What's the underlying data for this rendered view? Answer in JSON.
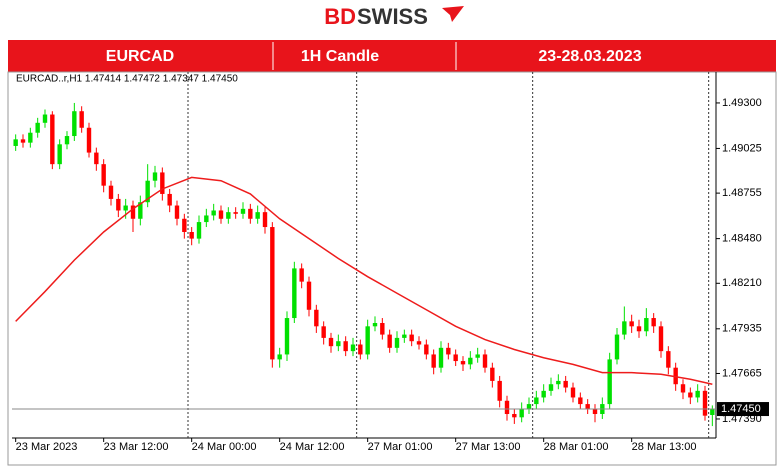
{
  "logo": {
    "part1": "BD",
    "part2": "SWISS"
  },
  "header": {
    "symbol": "EURCAD",
    "timeframe": "1H Candle",
    "period": "23-28.03.2023"
  },
  "chart_data": {
    "type": "candlestick",
    "info": "EURCAD..r,H1  1.47414 1.47472 1.47347 1.47450",
    "xlim": [
      -0.5,
      95.5
    ],
    "xticks": [
      {
        "value": 0,
        "label": "23 Mar 2023"
      },
      {
        "value": 12,
        "label": "23 Mar 12:00"
      },
      {
        "value": 24,
        "label": "24 Mar 00:00"
      },
      {
        "value": 36,
        "label": "24 Mar 12:00"
      },
      {
        "value": 48,
        "label": "27 Mar 01:00"
      },
      {
        "value": 60,
        "label": "27 Mar 13:00"
      },
      {
        "value": 72,
        "label": "28 Mar 01:00"
      },
      {
        "value": 84,
        "label": "28 Mar 13:00"
      }
    ],
    "ylim": [
      1.47275,
      1.49487
    ],
    "yticks": [
      {
        "value": 1.493,
        "label": "1.49300"
      },
      {
        "value": 1.49025,
        "label": "1.49025"
      },
      {
        "value": 1.48755,
        "label": "1.48755"
      },
      {
        "value": 1.4848,
        "label": "1.48480"
      },
      {
        "value": 1.4821,
        "label": "1.48210"
      },
      {
        "value": 1.47935,
        "label": "1.47935"
      },
      {
        "value": 1.47665,
        "label": "1.47665"
      },
      {
        "value": 1.4739,
        "label": "1.47390"
      }
    ],
    "last_price": {
      "value": 1.4745,
      "label": "1.47450"
    },
    "up_color": "#00e000",
    "down_color": "#ff0000",
    "series": [
      {
        "values": [
          [
            1.4904,
            1.4911,
            1.4901,
            1.4908
          ],
          [
            1.4908,
            1.4911,
            1.4903,
            1.4906
          ],
          [
            1.4906,
            1.4915,
            1.4903,
            1.4912
          ],
          [
            1.4912,
            1.4921,
            1.4909,
            1.4918
          ],
          [
            1.4918,
            1.4926,
            1.4915,
            1.4923
          ],
          [
            1.4923,
            1.4925,
            1.489,
            1.4893
          ],
          [
            1.4893,
            1.4908,
            1.489,
            1.4905
          ],
          [
            1.4905,
            1.4913,
            1.4902,
            1.491
          ],
          [
            1.491,
            1.493,
            1.4907,
            1.4925
          ],
          [
            1.4925,
            1.4928,
            1.4912,
            1.4915
          ],
          [
            1.4915,
            1.4918,
            1.4897,
            1.49
          ],
          [
            1.49,
            1.4903,
            1.4889,
            1.4893
          ],
          [
            1.4893,
            1.4896,
            1.4876,
            1.488
          ],
          [
            1.488,
            1.4883,
            1.4868,
            1.4872
          ],
          [
            1.4872,
            1.4875,
            1.4861,
            1.4865
          ],
          [
            1.4865,
            1.4872,
            1.486,
            1.4868
          ],
          [
            1.4868,
            1.4871,
            1.4852,
            1.486
          ],
          [
            1.486,
            1.4874,
            1.4856,
            1.487
          ],
          [
            1.487,
            1.4893,
            1.4867,
            1.4883
          ],
          [
            1.4883,
            1.4892,
            1.4879,
            1.4888
          ],
          [
            1.4888,
            1.4891,
            1.4871,
            1.4875
          ],
          [
            1.4875,
            1.4878,
            1.4864,
            1.4868
          ],
          [
            1.4868,
            1.4871,
            1.4856,
            1.486
          ],
          [
            1.486,
            1.4863,
            1.4848,
            1.4852
          ],
          [
            1.4852,
            1.4855,
            1.4844,
            1.4848
          ],
          [
            1.4848,
            1.4862,
            1.4845,
            1.4858
          ],
          [
            1.4858,
            1.4866,
            1.4855,
            1.4862
          ],
          [
            1.4862,
            1.4869,
            1.4859,
            1.4865
          ],
          [
            1.4865,
            1.4868,
            1.4857,
            1.486
          ],
          [
            1.486,
            1.4867,
            1.4857,
            1.4864
          ],
          [
            1.4864,
            1.4867,
            1.486,
            1.4863
          ],
          [
            1.4863,
            1.487,
            1.486,
            1.4866
          ],
          [
            1.4866,
            1.4869,
            1.4857,
            1.486
          ],
          [
            1.486,
            1.4868,
            1.4857,
            1.4864
          ],
          [
            1.4864,
            1.4867,
            1.4851,
            1.4855
          ],
          [
            1.4855,
            1.4858,
            1.477,
            1.4775
          ],
          [
            1.4775,
            1.4782,
            1.477,
            1.4778
          ],
          [
            1.4778,
            1.4804,
            1.4774,
            1.48
          ],
          [
            1.48,
            1.4834,
            1.4797,
            1.483
          ],
          [
            1.483,
            1.4833,
            1.4818,
            1.4822
          ],
          [
            1.4822,
            1.4825,
            1.4801,
            1.4805
          ],
          [
            1.4805,
            1.4808,
            1.4791,
            1.4795
          ],
          [
            1.4795,
            1.4798,
            1.4784,
            1.4788
          ],
          [
            1.4788,
            1.4791,
            1.4779,
            1.4783
          ],
          [
            1.4783,
            1.479,
            1.478,
            1.4786
          ],
          [
            1.4786,
            1.4789,
            1.4777,
            1.478
          ],
          [
            1.478,
            1.4788,
            1.4777,
            1.4784
          ],
          [
            1.4784,
            1.4787,
            1.4775,
            1.4778
          ],
          [
            1.4778,
            1.4799,
            1.4775,
            1.4795
          ],
          [
            1.4795,
            1.4801,
            1.4792,
            1.4797
          ],
          [
            1.4797,
            1.48,
            1.4787,
            1.479
          ],
          [
            1.479,
            1.4793,
            1.4779,
            1.4782
          ],
          [
            1.4782,
            1.4792,
            1.4779,
            1.4788
          ],
          [
            1.4788,
            1.4793,
            1.4785,
            1.479
          ],
          [
            1.479,
            1.4793,
            1.4783,
            1.4786
          ],
          [
            1.4786,
            1.4789,
            1.4781,
            1.4784
          ],
          [
            1.4784,
            1.4787,
            1.4775,
            1.4778
          ],
          [
            1.4778,
            1.4781,
            1.4766,
            1.477
          ],
          [
            1.477,
            1.4786,
            1.4767,
            1.4782
          ],
          [
            1.4782,
            1.4785,
            1.4775,
            1.4778
          ],
          [
            1.4778,
            1.4781,
            1.4771,
            1.4774
          ],
          [
            1.4774,
            1.4777,
            1.4768,
            1.4772
          ],
          [
            1.4772,
            1.478,
            1.4769,
            1.4776
          ],
          [
            1.4776,
            1.4782,
            1.4773,
            1.4778
          ],
          [
            1.4778,
            1.4781,
            1.4767,
            1.477
          ],
          [
            1.477,
            1.4773,
            1.4758,
            1.4762
          ],
          [
            1.4762,
            1.4765,
            1.4746,
            1.475
          ],
          [
            1.475,
            1.4753,
            1.4738,
            1.4742
          ],
          [
            1.4742,
            1.4745,
            1.4736,
            1.474
          ],
          [
            1.474,
            1.4749,
            1.4737,
            1.4745
          ],
          [
            1.4745,
            1.4752,
            1.4742,
            1.4748
          ],
          [
            1.4748,
            1.4756,
            1.4745,
            1.4752
          ],
          [
            1.4752,
            1.476,
            1.4749,
            1.4756
          ],
          [
            1.4756,
            1.4764,
            1.4753,
            1.476
          ],
          [
            1.476,
            1.4766,
            1.4757,
            1.4762
          ],
          [
            1.4762,
            1.4765,
            1.4755,
            1.4758
          ],
          [
            1.4758,
            1.4761,
            1.4749,
            1.4752
          ],
          [
            1.4752,
            1.4755,
            1.4745,
            1.4748
          ],
          [
            1.4748,
            1.4751,
            1.4742,
            1.4745
          ],
          [
            1.4745,
            1.4748,
            1.4737,
            1.4742
          ],
          [
            1.4742,
            1.4752,
            1.4739,
            1.4748
          ],
          [
            1.4748,
            1.4779,
            1.4745,
            1.4775
          ],
          [
            1.4775,
            1.4794,
            1.4772,
            1.479
          ],
          [
            1.479,
            1.4807,
            1.4787,
            1.4798
          ],
          [
            1.4798,
            1.4802,
            1.4791,
            1.4795
          ],
          [
            1.4795,
            1.4799,
            1.4788,
            1.4792
          ],
          [
            1.4792,
            1.4806,
            1.4789,
            1.48
          ],
          [
            1.48,
            1.4803,
            1.4791,
            1.4795
          ],
          [
            1.4795,
            1.4798,
            1.4776,
            1.478
          ],
          [
            1.478,
            1.4783,
            1.4766,
            1.477
          ],
          [
            1.477,
            1.4773,
            1.4756,
            1.476
          ],
          [
            1.476,
            1.4763,
            1.4751,
            1.4755
          ],
          [
            1.4755,
            1.4758,
            1.4748,
            1.4752
          ],
          [
            1.4752,
            1.476,
            1.4749,
            1.4756
          ],
          [
            1.4756,
            1.4759,
            1.4738,
            1.4741
          ],
          [
            1.47414,
            1.47472,
            1.47347,
            1.4745
          ]
        ]
      },
      {
        "type": "line",
        "color": "#ee1c1c",
        "x": [
          0,
          4,
          8,
          12,
          16,
          20,
          24,
          28,
          32,
          36,
          40,
          44,
          48,
          52,
          56,
          60,
          64,
          68,
          72,
          76,
          80,
          84,
          88,
          92,
          95
        ],
        "values": [
          1.4798,
          1.4816,
          1.4835,
          1.4852,
          1.4866,
          1.4878,
          1.4885,
          1.4883,
          1.4875,
          1.486,
          1.4848,
          1.4836,
          1.4825,
          1.4815,
          1.4805,
          1.4795,
          1.4787,
          1.4781,
          1.4776,
          1.4772,
          1.4767,
          1.4767,
          1.4766,
          1.4763,
          1.476
        ]
      }
    ]
  }
}
